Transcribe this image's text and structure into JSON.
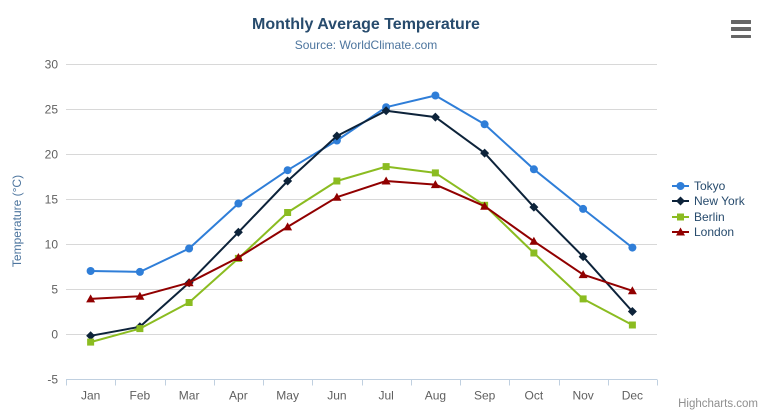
{
  "chart_data": {
    "type": "line",
    "title": "Monthly Average Temperature",
    "subtitle": "Source: WorldClimate.com",
    "xlabel": "",
    "ylabel": "Temperature (°C)",
    "ylim": [
      -5,
      30
    ],
    "yticks": [
      -5,
      0,
      5,
      10,
      15,
      20,
      25,
      30
    ],
    "grid": true,
    "legend_position": "right",
    "categories": [
      "Jan",
      "Feb",
      "Mar",
      "Apr",
      "May",
      "Jun",
      "Jul",
      "Aug",
      "Sep",
      "Oct",
      "Nov",
      "Dec"
    ],
    "series": [
      {
        "name": "Tokyo",
        "color": "#2f7ed8",
        "symbol": "circle",
        "values": [
          7.0,
          6.9,
          9.5,
          14.5,
          18.2,
          21.5,
          25.2,
          26.5,
          23.3,
          18.3,
          13.9,
          9.6
        ]
      },
      {
        "name": "New York",
        "color": "#0d233a",
        "symbol": "diamond",
        "values": [
          -0.2,
          0.8,
          5.7,
          11.3,
          17.0,
          22.0,
          24.8,
          24.1,
          20.1,
          14.1,
          8.6,
          2.5
        ]
      },
      {
        "name": "Berlin",
        "color": "#8bbc21",
        "symbol": "square",
        "values": [
          -0.9,
          0.6,
          3.5,
          8.4,
          13.5,
          17.0,
          18.6,
          17.9,
          14.3,
          9.0,
          3.9,
          1.0
        ]
      },
      {
        "name": "London",
        "color": "#910000",
        "symbol": "triangle",
        "values": [
          3.9,
          4.2,
          5.7,
          8.5,
          11.9,
          15.2,
          17.0,
          16.6,
          14.2,
          10.3,
          6.6,
          4.8
        ]
      }
    ],
    "colors": {
      "title": "#274b6d",
      "subtitle": "#4d759e",
      "axis_labels": "#606060",
      "axis_title": "#4d759e",
      "gridline": "#d8d8d8",
      "axis_line": "#c0d0e0",
      "legend_text": "#274b6d"
    }
  },
  "context_menu": {
    "icon": "hamburger-icon"
  },
  "credits": "Highcharts.com"
}
